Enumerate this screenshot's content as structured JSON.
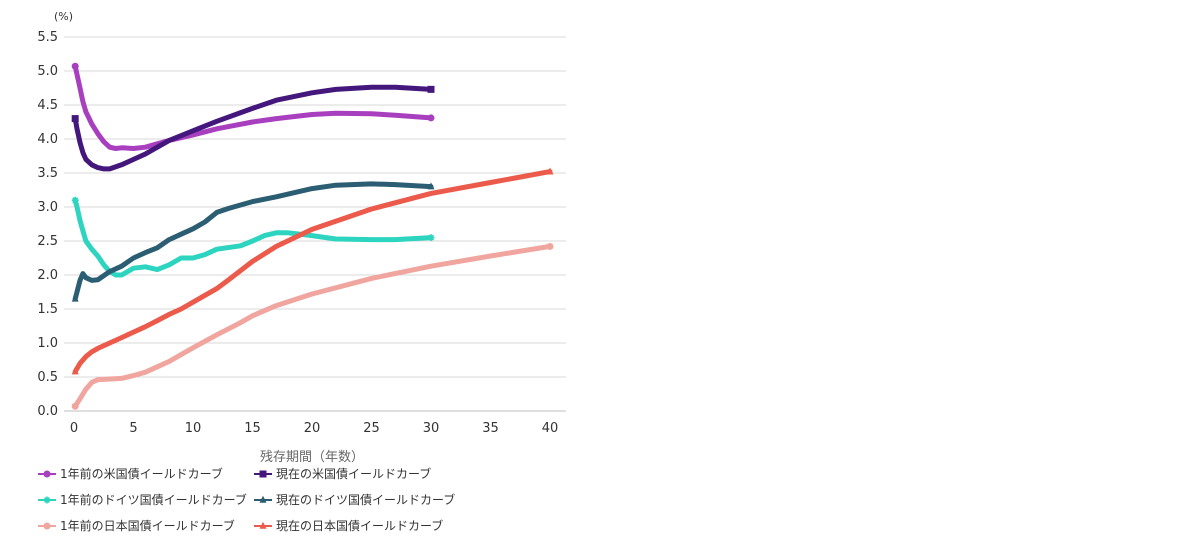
{
  "chart_data": {
    "type": "line",
    "title": "",
    "xlabel": "残存期間（年数）",
    "ylabel": "",
    "y_unit": "(%)",
    "xlim": [
      0,
      40
    ],
    "ylim": [
      0,
      5.5
    ],
    "x_ticks": [
      "0",
      "5",
      "10",
      "15",
      "20",
      "25",
      "30",
      "35",
      "40"
    ],
    "y_ticks": [
      "0.0",
      "0.5",
      "1.0",
      "1.5",
      "2.0",
      "2.5",
      "3.0",
      "3.5",
      "4.0",
      "4.5",
      "5.0",
      "5.5"
    ],
    "grid": "horizontal",
    "legend_position": "bottom",
    "series": [
      {
        "name": "1年前の米国債イールドカーブ",
        "color": "#a83fbf",
        "marker": "circle",
        "points": [
          [
            0.1,
            5.07
          ],
          [
            0.25,
            4.95
          ],
          [
            0.5,
            4.75
          ],
          [
            0.75,
            4.55
          ],
          [
            1,
            4.4
          ],
          [
            1.5,
            4.22
          ],
          [
            2,
            4.08
          ],
          [
            2.5,
            3.96
          ],
          [
            3,
            3.88
          ],
          [
            3.5,
            3.86
          ],
          [
            4,
            3.87
          ],
          [
            5,
            3.86
          ],
          [
            6,
            3.88
          ],
          [
            7,
            3.93
          ],
          [
            8,
            3.98
          ],
          [
            10,
            4.06
          ],
          [
            12,
            4.15
          ],
          [
            15,
            4.25
          ],
          [
            17,
            4.3
          ],
          [
            20,
            4.36
          ],
          [
            22,
            4.38
          ],
          [
            25,
            4.37
          ],
          [
            27,
            4.35
          ],
          [
            30,
            4.31
          ]
        ]
      },
      {
        "name": "現在の米国債イールドカーブ",
        "color": "#44177d",
        "marker": "square",
        "points": [
          [
            0.1,
            4.3
          ],
          [
            0.25,
            4.15
          ],
          [
            0.5,
            3.95
          ],
          [
            0.75,
            3.8
          ],
          [
            1,
            3.7
          ],
          [
            1.5,
            3.62
          ],
          [
            2,
            3.58
          ],
          [
            2.5,
            3.56
          ],
          [
            3,
            3.56
          ],
          [
            4,
            3.62
          ],
          [
            5,
            3.7
          ],
          [
            6,
            3.78
          ],
          [
            7,
            3.88
          ],
          [
            8,
            3.98
          ],
          [
            10,
            4.12
          ],
          [
            12,
            4.26
          ],
          [
            15,
            4.45
          ],
          [
            17,
            4.57
          ],
          [
            20,
            4.68
          ],
          [
            22,
            4.73
          ],
          [
            25,
            4.76
          ],
          [
            27,
            4.76
          ],
          [
            30,
            4.73
          ]
        ]
      },
      {
        "name": "1年前のドイツ国債イールドカーブ",
        "color": "#2dd4bf",
        "marker": "star",
        "points": [
          [
            0.1,
            3.1
          ],
          [
            0.25,
            3.0
          ],
          [
            0.5,
            2.8
          ],
          [
            0.75,
            2.65
          ],
          [
            1,
            2.5
          ],
          [
            1.5,
            2.38
          ],
          [
            2,
            2.28
          ],
          [
            2.5,
            2.15
          ],
          [
            3,
            2.05
          ],
          [
            3.5,
            2.0
          ],
          [
            4,
            2.0
          ],
          [
            5,
            2.1
          ],
          [
            6,
            2.12
          ],
          [
            7,
            2.08
          ],
          [
            8,
            2.15
          ],
          [
            9,
            2.25
          ],
          [
            10,
            2.25
          ],
          [
            11,
            2.3
          ],
          [
            12,
            2.38
          ],
          [
            14,
            2.43
          ],
          [
            15,
            2.5
          ],
          [
            16,
            2.58
          ],
          [
            17,
            2.62
          ],
          [
            18,
            2.62
          ],
          [
            20,
            2.58
          ],
          [
            22,
            2.53
          ],
          [
            25,
            2.52
          ],
          [
            27,
            2.52
          ],
          [
            30,
            2.55
          ]
        ]
      },
      {
        "name": "現在のドイツ国債イールドカーブ",
        "color": "#2b5d73",
        "marker": "triangle",
        "points": [
          [
            0.1,
            1.65
          ],
          [
            0.25,
            1.75
          ],
          [
            0.5,
            1.92
          ],
          [
            0.75,
            2.02
          ],
          [
            1,
            1.96
          ],
          [
            1.5,
            1.92
          ],
          [
            2,
            1.93
          ],
          [
            3,
            2.05
          ],
          [
            4,
            2.13
          ],
          [
            5,
            2.25
          ],
          [
            6,
            2.33
          ],
          [
            7,
            2.4
          ],
          [
            8,
            2.52
          ],
          [
            9,
            2.6
          ],
          [
            10,
            2.68
          ],
          [
            11,
            2.78
          ],
          [
            12,
            2.92
          ],
          [
            13,
            2.98
          ],
          [
            15,
            3.08
          ],
          [
            17,
            3.15
          ],
          [
            20,
            3.27
          ],
          [
            22,
            3.32
          ],
          [
            25,
            3.34
          ],
          [
            27,
            3.33
          ],
          [
            30,
            3.3
          ]
        ]
      },
      {
        "name": "1年前の日本国債イールドカーブ",
        "color": "#f0a59f",
        "marker": "circle",
        "points": [
          [
            0.1,
            0.07
          ],
          [
            0.5,
            0.18
          ],
          [
            1,
            0.32
          ],
          [
            1.5,
            0.42
          ],
          [
            2,
            0.46
          ],
          [
            3,
            0.47
          ],
          [
            4,
            0.48
          ],
          [
            5,
            0.52
          ],
          [
            6,
            0.57
          ],
          [
            7,
            0.65
          ],
          [
            8,
            0.73
          ],
          [
            9,
            0.83
          ],
          [
            10,
            0.93
          ],
          [
            12,
            1.12
          ],
          [
            14,
            1.3
          ],
          [
            15,
            1.4
          ],
          [
            17,
            1.55
          ],
          [
            20,
            1.72
          ],
          [
            25,
            1.95
          ],
          [
            30,
            2.13
          ],
          [
            35,
            2.28
          ],
          [
            40,
            2.42
          ]
        ]
      },
      {
        "name": "現在の日本国債イールドカーブ",
        "color": "#eb5a4a",
        "marker": "triangle",
        "points": [
          [
            0.1,
            0.58
          ],
          [
            0.5,
            0.7
          ],
          [
            1,
            0.8
          ],
          [
            1.5,
            0.87
          ],
          [
            2,
            0.92
          ],
          [
            3,
            1.0
          ],
          [
            4,
            1.08
          ],
          [
            5,
            1.16
          ],
          [
            6,
            1.24
          ],
          [
            7,
            1.33
          ],
          [
            8,
            1.42
          ],
          [
            9,
            1.5
          ],
          [
            10,
            1.6
          ],
          [
            12,
            1.8
          ],
          [
            13,
            1.93
          ],
          [
            15,
            2.2
          ],
          [
            17,
            2.42
          ],
          [
            20,
            2.67
          ],
          [
            25,
            2.97
          ],
          [
            30,
            3.2
          ],
          [
            35,
            3.36
          ],
          [
            40,
            3.52
          ]
        ]
      }
    ]
  }
}
